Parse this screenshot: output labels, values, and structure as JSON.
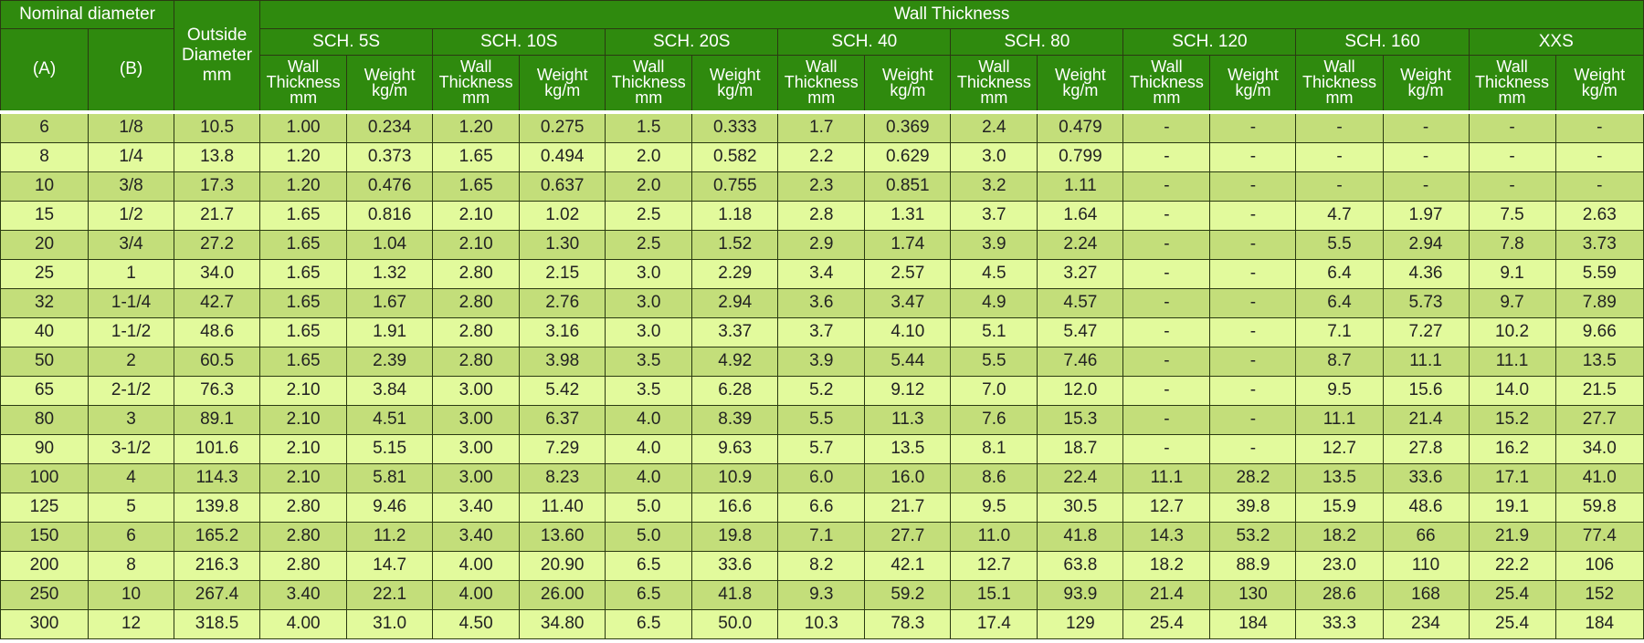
{
  "header": {
    "nominal_diameter": "Nominal diameter",
    "col_a": "(A)",
    "col_b": "(B)",
    "outside_diameter": [
      "Outside",
      "Diameter",
      "mm"
    ],
    "wall_thickness": "Wall Thickness",
    "schedules": [
      "SCH. 5S",
      "SCH. 10S",
      "SCH. 20S",
      "SCH. 40",
      "SCH. 80",
      "SCH. 120",
      "SCH. 160",
      "XXS"
    ],
    "sub_wall": [
      "Wall",
      "Thickness",
      "mm"
    ],
    "sub_weight": [
      "Weight",
      "kg/m"
    ]
  },
  "rows": [
    [
      "6",
      "1/8",
      "10.5",
      "1.00",
      "0.234",
      "1.20",
      "0.275",
      "1.5",
      "0.333",
      "1.7",
      "0.369",
      "2.4",
      "0.479",
      "-",
      "-",
      "-",
      "-",
      "-",
      "-"
    ],
    [
      "8",
      "1/4",
      "13.8",
      "1.20",
      "0.373",
      "1.65",
      "0.494",
      "2.0",
      "0.582",
      "2.2",
      "0.629",
      "3.0",
      "0.799",
      "-",
      "-",
      "-",
      "-",
      "-",
      "-"
    ],
    [
      "10",
      "3/8",
      "17.3",
      "1.20",
      "0.476",
      "1.65",
      "0.637",
      "2.0",
      "0.755",
      "2.3",
      "0.851",
      "3.2",
      "1.11",
      "-",
      "-",
      "-",
      "-",
      "-",
      "-"
    ],
    [
      "15",
      "1/2",
      "21.7",
      "1.65",
      "0.816",
      "2.10",
      "1.02",
      "2.5",
      "1.18",
      "2.8",
      "1.31",
      "3.7",
      "1.64",
      "-",
      "-",
      "4.7",
      "1.97",
      "7.5",
      "2.63"
    ],
    [
      "20",
      "3/4",
      "27.2",
      "1.65",
      "1.04",
      "2.10",
      "1.30",
      "2.5",
      "1.52",
      "2.9",
      "1.74",
      "3.9",
      "2.24",
      "-",
      "-",
      "5.5",
      "2.94",
      "7.8",
      "3.73"
    ],
    [
      "25",
      "1",
      "34.0",
      "1.65",
      "1.32",
      "2.80",
      "2.15",
      "3.0",
      "2.29",
      "3.4",
      "2.57",
      "4.5",
      "3.27",
      "-",
      "-",
      "6.4",
      "4.36",
      "9.1",
      "5.59"
    ],
    [
      "32",
      "1-1/4",
      "42.7",
      "1.65",
      "1.67",
      "2.80",
      "2.76",
      "3.0",
      "2.94",
      "3.6",
      "3.47",
      "4.9",
      "4.57",
      "-",
      "-",
      "6.4",
      "5.73",
      "9.7",
      "7.89"
    ],
    [
      "40",
      "1-1/2",
      "48.6",
      "1.65",
      "1.91",
      "2.80",
      "3.16",
      "3.0",
      "3.37",
      "3.7",
      "4.10",
      "5.1",
      "5.47",
      "-",
      "-",
      "7.1",
      "7.27",
      "10.2",
      "9.66"
    ],
    [
      "50",
      "2",
      "60.5",
      "1.65",
      "2.39",
      "2.80",
      "3.98",
      "3.5",
      "4.92",
      "3.9",
      "5.44",
      "5.5",
      "7.46",
      "-",
      "-",
      "8.7",
      "11.1",
      "11.1",
      "13.5"
    ],
    [
      "65",
      "2-1/2",
      "76.3",
      "2.10",
      "3.84",
      "3.00",
      "5.42",
      "3.5",
      "6.28",
      "5.2",
      "9.12",
      "7.0",
      "12.0",
      "-",
      "-",
      "9.5",
      "15.6",
      "14.0",
      "21.5"
    ],
    [
      "80",
      "3",
      "89.1",
      "2.10",
      "4.51",
      "3.00",
      "6.37",
      "4.0",
      "8.39",
      "5.5",
      "11.3",
      "7.6",
      "15.3",
      "-",
      "-",
      "11.1",
      "21.4",
      "15.2",
      "27.7"
    ],
    [
      "90",
      "3-1/2",
      "101.6",
      "2.10",
      "5.15",
      "3.00",
      "7.29",
      "4.0",
      "9.63",
      "5.7",
      "13.5",
      "8.1",
      "18.7",
      "-",
      "-",
      "12.7",
      "27.8",
      "16.2",
      "34.0"
    ],
    [
      "100",
      "4",
      "114.3",
      "2.10",
      "5.81",
      "3.00",
      "8.23",
      "4.0",
      "10.9",
      "6.0",
      "16.0",
      "8.6",
      "22.4",
      "11.1",
      "28.2",
      "13.5",
      "33.6",
      "17.1",
      "41.0"
    ],
    [
      "125",
      "5",
      "139.8",
      "2.80",
      "9.46",
      "3.40",
      "11.40",
      "5.0",
      "16.6",
      "6.6",
      "21.7",
      "9.5",
      "30.5",
      "12.7",
      "39.8",
      "15.9",
      "48.6",
      "19.1",
      "59.8"
    ],
    [
      "150",
      "6",
      "165.2",
      "2.80",
      "11.2",
      "3.40",
      "13.60",
      "5.0",
      "19.8",
      "7.1",
      "27.7",
      "11.0",
      "41.8",
      "14.3",
      "53.2",
      "18.2",
      "66",
      "21.9",
      "77.4"
    ],
    [
      "200",
      "8",
      "216.3",
      "2.80",
      "14.7",
      "4.00",
      "20.90",
      "6.5",
      "33.6",
      "8.2",
      "42.1",
      "12.7",
      "63.8",
      "18.2",
      "88.9",
      "23.0",
      "110",
      "22.2",
      "106"
    ],
    [
      "250",
      "10",
      "267.4",
      "3.40",
      "22.1",
      "4.00",
      "26.00",
      "6.5",
      "41.8",
      "9.3",
      "59.2",
      "15.1",
      "93.9",
      "21.4",
      "130",
      "28.6",
      "168",
      "25.4",
      "152"
    ],
    [
      "300",
      "12",
      "318.5",
      "4.00",
      "31.0",
      "4.50",
      "34.80",
      "6.5",
      "50.0",
      "10.3",
      "78.3",
      "17.4",
      "129",
      "25.4",
      "184",
      "33.3",
      "234",
      "25.4",
      "184"
    ]
  ]
}
